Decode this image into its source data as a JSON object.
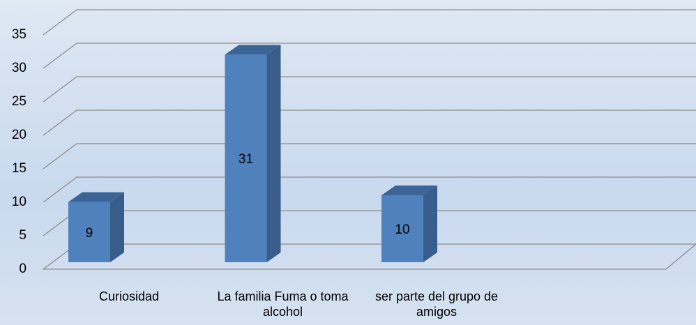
{
  "chart_data": {
    "type": "bar3d",
    "categories": [
      "Curiosidad",
      "La familia Fuma o toma alcohol",
      "ser parte del grupo de amigos",
      null
    ],
    "values": [
      9,
      31,
      10,
      null
    ],
    "color": "#4f81bd",
    "ylim": [
      0,
      35
    ],
    "yticks": [
      0,
      5,
      10,
      15,
      20,
      25,
      30,
      35
    ],
    "grid": true
  }
}
